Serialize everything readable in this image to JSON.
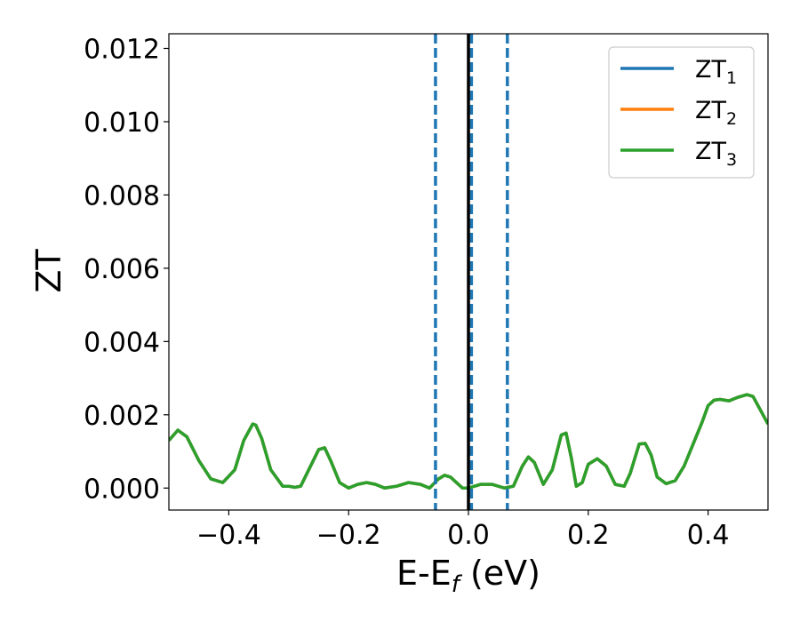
{
  "chart_data": {
    "type": "line",
    "title": "",
    "xlabel": "E-E",
    "xlabel_sub": "f",
    "xlabel_unit": " (eV)",
    "ylabel": "ZT",
    "xlim": [
      -0.5,
      0.5
    ],
    "ylim": [
      -0.0006,
      0.0124
    ],
    "xticks": [
      -0.4,
      -0.2,
      0.0,
      0.2,
      0.4
    ],
    "xtick_labels": [
      "−0.4",
      "−0.2",
      "0.0",
      "0.2",
      "0.4"
    ],
    "yticks": [
      0.0,
      0.002,
      0.004,
      0.006,
      0.008,
      0.01,
      0.012
    ],
    "ytick_labels": [
      "0.000",
      "0.002",
      "0.004",
      "0.006",
      "0.008",
      "0.010",
      "0.012"
    ],
    "grid": false,
    "legend_position": "top-right",
    "series": [
      {
        "name": "ZT",
        "sub": "1",
        "color": "#1f77b4"
      },
      {
        "name": "ZT",
        "sub": "2",
        "color": "#ff7f0e"
      },
      {
        "name": "ZT",
        "sub": "3",
        "color": "#2ca02c"
      }
    ],
    "x": [
      -0.5,
      -0.485,
      -0.47,
      -0.45,
      -0.43,
      -0.41,
      -0.39,
      -0.375,
      -0.36,
      -0.355,
      -0.345,
      -0.33,
      -0.31,
      -0.3,
      -0.29,
      -0.28,
      -0.265,
      -0.25,
      -0.24,
      -0.23,
      -0.215,
      -0.2,
      -0.185,
      -0.17,
      -0.155,
      -0.14,
      -0.12,
      -0.1,
      -0.08,
      -0.065,
      -0.05,
      -0.04,
      -0.03,
      -0.02,
      -0.01,
      0.0,
      0.01,
      0.02,
      0.04,
      0.06,
      0.075,
      0.09,
      0.1,
      0.11,
      0.125,
      0.14,
      0.155,
      0.163,
      0.172,
      0.18,
      0.19,
      0.2,
      0.215,
      0.23,
      0.245,
      0.26,
      0.27,
      0.285,
      0.295,
      0.305,
      0.315,
      0.33,
      0.345,
      0.36,
      0.375,
      0.39,
      0.4,
      0.41,
      0.42,
      0.435,
      0.45,
      0.465,
      0.475,
      0.485,
      0.5
    ],
    "y_values": [
      0.0013,
      0.00158,
      0.0014,
      0.00075,
      0.00025,
      0.00015,
      0.0005,
      0.0013,
      0.00175,
      0.00172,
      0.00135,
      0.0005,
      5e-05,
      5e-05,
      2e-05,
      5e-05,
      0.00055,
      0.00105,
      0.0011,
      0.00075,
      0.00015,
      0.0,
      0.0001,
      0.00015,
      0.0001,
      0.0,
      5e-05,
      0.00015,
      0.0001,
      0.0,
      0.00025,
      0.00035,
      0.0003,
      0.00015,
      0.0,
      0.0,
      5e-05,
      0.0001,
      0.0001,
      0.0,
      5e-05,
      0.0006,
      0.00085,
      0.0007,
      0.0001,
      0.0005,
      0.00145,
      0.0015,
      0.0008,
      5e-05,
      0.00015,
      0.00065,
      0.0008,
      0.0006,
      0.0001,
      5e-05,
      0.0004,
      0.0012,
      0.00122,
      0.0009,
      0.0003,
      0.00012,
      0.0002,
      0.0006,
      0.0012,
      0.0018,
      0.00225,
      0.0024,
      0.00242,
      0.00238,
      0.00248,
      0.00255,
      0.0025,
      0.0022,
      0.00175
    ],
    "vlines_dashed": [
      -0.055,
      0.005,
      0.065
    ],
    "vline_solid": 0.0
  }
}
